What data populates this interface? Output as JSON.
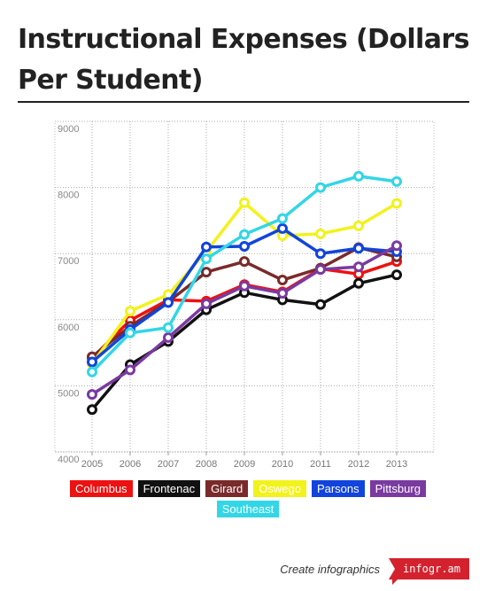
{
  "title": "Instructional Expenses (Dollars Per Student)",
  "footer": {
    "text": "Create infographics",
    "logo": "infogr.am"
  },
  "chart_data": {
    "type": "line",
    "x": [
      "2005",
      "2006",
      "2007",
      "2008",
      "2009",
      "2010",
      "2011",
      "2012",
      "2013"
    ],
    "yticks": [
      4000,
      5000,
      6000,
      7000,
      8000,
      9000
    ],
    "ylim": [
      4000,
      9000
    ],
    "grid": true,
    "legend_position": "bottom",
    "series": [
      {
        "name": "Columbus",
        "color": "#ee1111",
        "values": [
          5420,
          5990,
          6300,
          6280,
          6530,
          6420,
          6770,
          6690,
          6880
        ]
      },
      {
        "name": "Frontenac",
        "color": "#111111",
        "values": [
          4640,
          5320,
          5670,
          6150,
          6410,
          6300,
          6230,
          6550,
          6680
        ]
      },
      {
        "name": "Girard",
        "color": "#7a2a2a",
        "values": [
          5440,
          5900,
          6270,
          6720,
          6880,
          6600,
          6780,
          7090,
          6950
        ]
      },
      {
        "name": "Oswego",
        "color": "#f2f21c",
        "values": [
          5330,
          6130,
          6380,
          7030,
          7770,
          7270,
          7300,
          7420,
          7760
        ]
      },
      {
        "name": "Parsons",
        "color": "#1144dd",
        "values": [
          5360,
          5850,
          6260,
          7100,
          7110,
          7380,
          7000,
          7080,
          7030
        ]
      },
      {
        "name": "Pittsburg",
        "color": "#7a3aa0",
        "values": [
          4870,
          5240,
          5730,
          6240,
          6510,
          6400,
          6760,
          6800,
          7120
        ]
      },
      {
        "name": "Southeast",
        "color": "#33d6e6",
        "values": [
          5210,
          5800,
          5880,
          6920,
          7290,
          7530,
          8000,
          8170,
          8090
        ]
      }
    ]
  }
}
